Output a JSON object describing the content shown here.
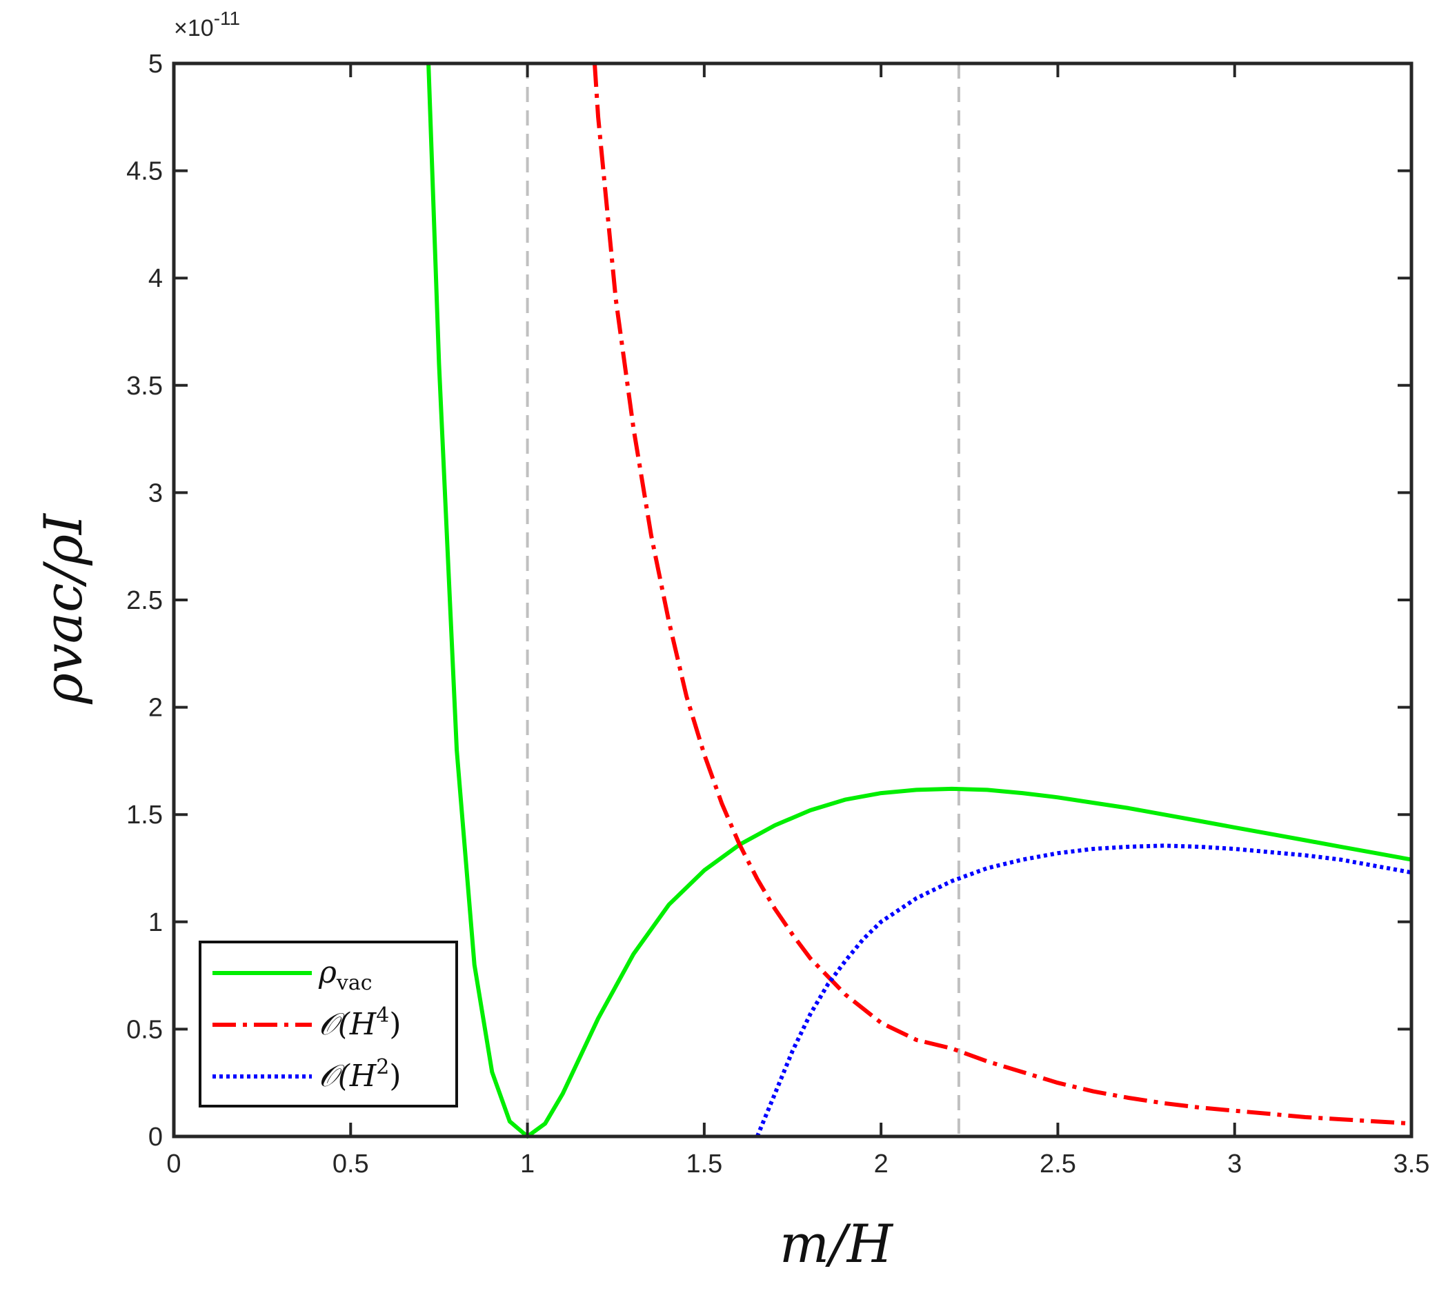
{
  "chart_data": {
    "type": "line",
    "xlabel": "m/H",
    "ylabel": "ρvac/ρI",
    "xlim": [
      0,
      3.5
    ],
    "ylim": [
      0,
      5
    ],
    "y_exponent_label": "×10",
    "y_exponent_power": "-11",
    "x_ticks": [
      "0",
      "0.5",
      "1",
      "1.5",
      "2",
      "2.5",
      "3",
      "3.5"
    ],
    "y_ticks": [
      "0",
      "0.5",
      "1",
      "1.5",
      "2",
      "2.5",
      "3",
      "3.5",
      "4",
      "4.5",
      "5"
    ],
    "grid": false,
    "legend_position": "bottom-left",
    "reference_lines": [
      {
        "x": 1.0,
        "style": "dashed",
        "color": "#c0c0c0"
      },
      {
        "x": 2.22,
        "style": "dashed",
        "color": "#c0c0c0"
      }
    ],
    "series": [
      {
        "name": "ρvac",
        "legend_main": "ρ",
        "legend_sub": "vac",
        "color": "#00ee00",
        "style": "solid",
        "x": [
          0.72,
          0.75,
          0.8,
          0.85,
          0.9,
          0.95,
          1.0,
          1.05,
          1.1,
          1.2,
          1.3,
          1.4,
          1.5,
          1.6,
          1.7,
          1.8,
          1.9,
          2.0,
          2.1,
          2.2,
          2.3,
          2.4,
          2.5,
          2.6,
          2.7,
          2.8,
          2.9,
          3.0,
          3.1,
          3.2,
          3.3,
          3.4,
          3.5
        ],
        "y": [
          5.0,
          3.6,
          1.8,
          0.8,
          0.3,
          0.07,
          0.0,
          0.06,
          0.2,
          0.55,
          0.85,
          1.08,
          1.24,
          1.36,
          1.45,
          1.52,
          1.57,
          1.6,
          1.615,
          1.62,
          1.615,
          1.6,
          1.58,
          1.555,
          1.53,
          1.5,
          1.47,
          1.44,
          1.41,
          1.38,
          1.35,
          1.32,
          1.29
        ]
      },
      {
        "name": "O(H4)",
        "legend_main": "𝒪(H",
        "legend_sup": "4",
        "legend_close": ")",
        "color": "#ff0000",
        "style": "dashdot",
        "x": [
          1.19,
          1.2,
          1.25,
          1.3,
          1.35,
          1.4,
          1.45,
          1.5,
          1.55,
          1.6,
          1.65,
          1.7,
          1.75,
          1.8,
          1.9,
          2.0,
          2.1,
          2.2,
          2.3,
          2.4,
          2.5,
          2.6,
          2.7,
          2.8,
          2.9,
          3.0,
          3.1,
          3.2,
          3.3,
          3.4,
          3.5
        ],
        "y": [
          5.0,
          4.75,
          3.9,
          3.3,
          2.8,
          2.4,
          2.05,
          1.78,
          1.55,
          1.36,
          1.2,
          1.06,
          0.94,
          0.83,
          0.66,
          0.53,
          0.45,
          0.41,
          0.35,
          0.3,
          0.25,
          0.21,
          0.18,
          0.155,
          0.135,
          0.12,
          0.105,
          0.09,
          0.08,
          0.07,
          0.06
        ]
      },
      {
        "name": "O(H2)",
        "legend_main": "𝒪(H",
        "legend_sup": "2",
        "legend_close": ")",
        "color": "#0000ff",
        "style": "dotted",
        "x": [
          1.65,
          1.7,
          1.75,
          1.8,
          1.85,
          1.9,
          1.95,
          2.0,
          2.1,
          2.2,
          2.3,
          2.4,
          2.5,
          2.6,
          2.7,
          2.8,
          2.9,
          3.0,
          3.1,
          3.2,
          3.3,
          3.4,
          3.5
        ],
        "y": [
          0.0,
          0.2,
          0.4,
          0.57,
          0.71,
          0.82,
          0.92,
          1.0,
          1.11,
          1.19,
          1.25,
          1.29,
          1.32,
          1.34,
          1.35,
          1.355,
          1.35,
          1.34,
          1.325,
          1.31,
          1.29,
          1.26,
          1.23
        ]
      }
    ]
  }
}
